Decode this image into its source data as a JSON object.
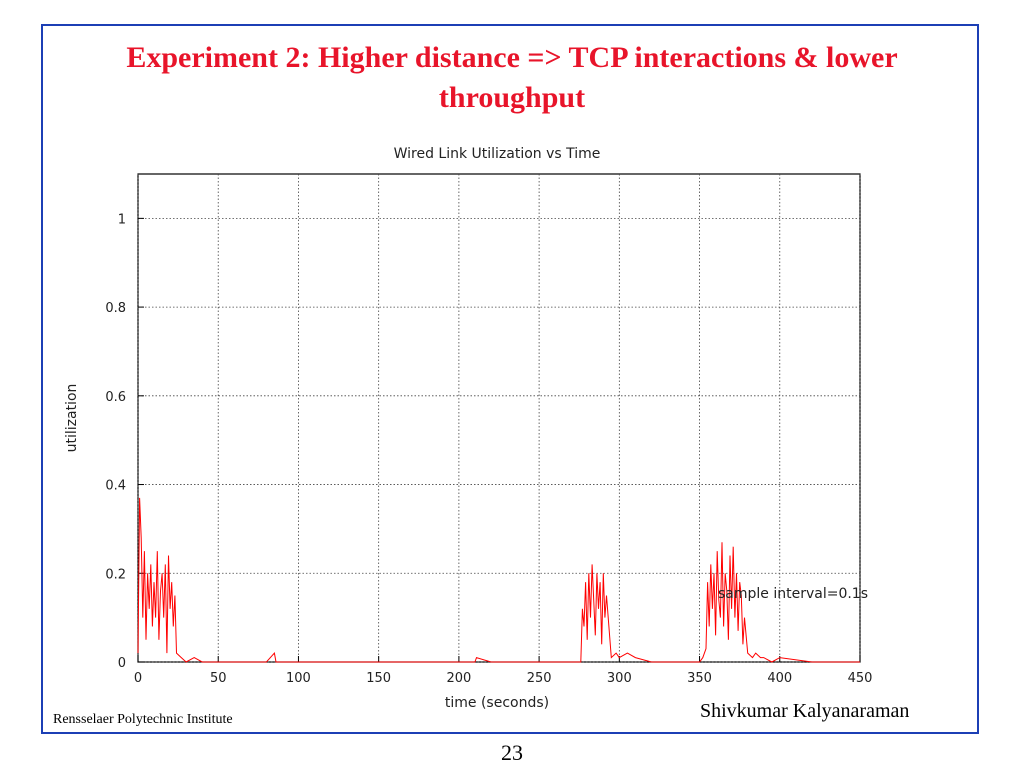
{
  "slide": {
    "title": "Experiment 2: Higher distance => TCP interactions & lower throughput",
    "title_color": "#e8142a",
    "border_color": "#1c3fb5",
    "footer_left": "Rensselaer Polytechnic Institute",
    "footer_right": "Shivkumar Kalyanaraman",
    "page_number": "23"
  },
  "chart_data": {
    "type": "line",
    "title": "Wired Link Utilization vs Time",
    "xlabel": "time (seconds)",
    "ylabel": "utilization",
    "xlim": [
      0,
      450
    ],
    "ylim": [
      0,
      1.1
    ],
    "xticks": [
      0,
      50,
      100,
      150,
      200,
      250,
      300,
      350,
      400,
      450
    ],
    "yticks": [
      0,
      0.2,
      0.4,
      0.6,
      0.8,
      1
    ],
    "grid": true,
    "annotation": "sample interval=0.1s",
    "series": [
      {
        "color": "#ff0000",
        "x": [
          0,
          1,
          2,
          3,
          4,
          5,
          6,
          7,
          8,
          9,
          10,
          11,
          12,
          13,
          14,
          15,
          16,
          17,
          18,
          19,
          20,
          21,
          22,
          23,
          24,
          27,
          30,
          35,
          40,
          50,
          60,
          70,
          80,
          85,
          86,
          90,
          100,
          120,
          140,
          160,
          180,
          200,
          210,
          211,
          220,
          240,
          260,
          270,
          276,
          277,
          278,
          279,
          280,
          281,
          282,
          283,
          284,
          285,
          286,
          287,
          288,
          289,
          290,
          291,
          292,
          295,
          298,
          300,
          305,
          310,
          320,
          330,
          340,
          350,
          352,
          354,
          355,
          356,
          357,
          358,
          359,
          360,
          361,
          362,
          363,
          364,
          365,
          366,
          367,
          368,
          369,
          370,
          371,
          372,
          373,
          374,
          375,
          376,
          377,
          378,
          380,
          383,
          385,
          388,
          390,
          395,
          400,
          420,
          450
        ],
        "y": [
          0.02,
          0.37,
          0.28,
          0.1,
          0.25,
          0.05,
          0.2,
          0.12,
          0.22,
          0.08,
          0.18,
          0.1,
          0.25,
          0.05,
          0.16,
          0.2,
          0.1,
          0.22,
          0.02,
          0.24,
          0.12,
          0.18,
          0.08,
          0.15,
          0.02,
          0.01,
          0.0,
          0.01,
          0.0,
          0.0,
          0.0,
          0.0,
          0.0,
          0.02,
          0.0,
          0.0,
          0.0,
          0.0,
          0.0,
          0.0,
          0.0,
          0.0,
          0.0,
          0.01,
          0.0,
          0.0,
          0.0,
          0.0,
          0.0,
          0.12,
          0.08,
          0.18,
          0.05,
          0.2,
          0.1,
          0.22,
          0.14,
          0.06,
          0.2,
          0.12,
          0.18,
          0.04,
          0.2,
          0.1,
          0.15,
          0.01,
          0.02,
          0.01,
          0.02,
          0.01,
          0.0,
          0.0,
          0.0,
          0.0,
          0.01,
          0.03,
          0.18,
          0.08,
          0.22,
          0.12,
          0.2,
          0.06,
          0.25,
          0.14,
          0.1,
          0.27,
          0.08,
          0.2,
          0.16,
          0.05,
          0.24,
          0.12,
          0.26,
          0.1,
          0.2,
          0.07,
          0.18,
          0.15,
          0.04,
          0.1,
          0.02,
          0.01,
          0.02,
          0.01,
          0.01,
          0.0,
          0.01,
          0.0,
          0.0
        ]
      }
    ]
  }
}
